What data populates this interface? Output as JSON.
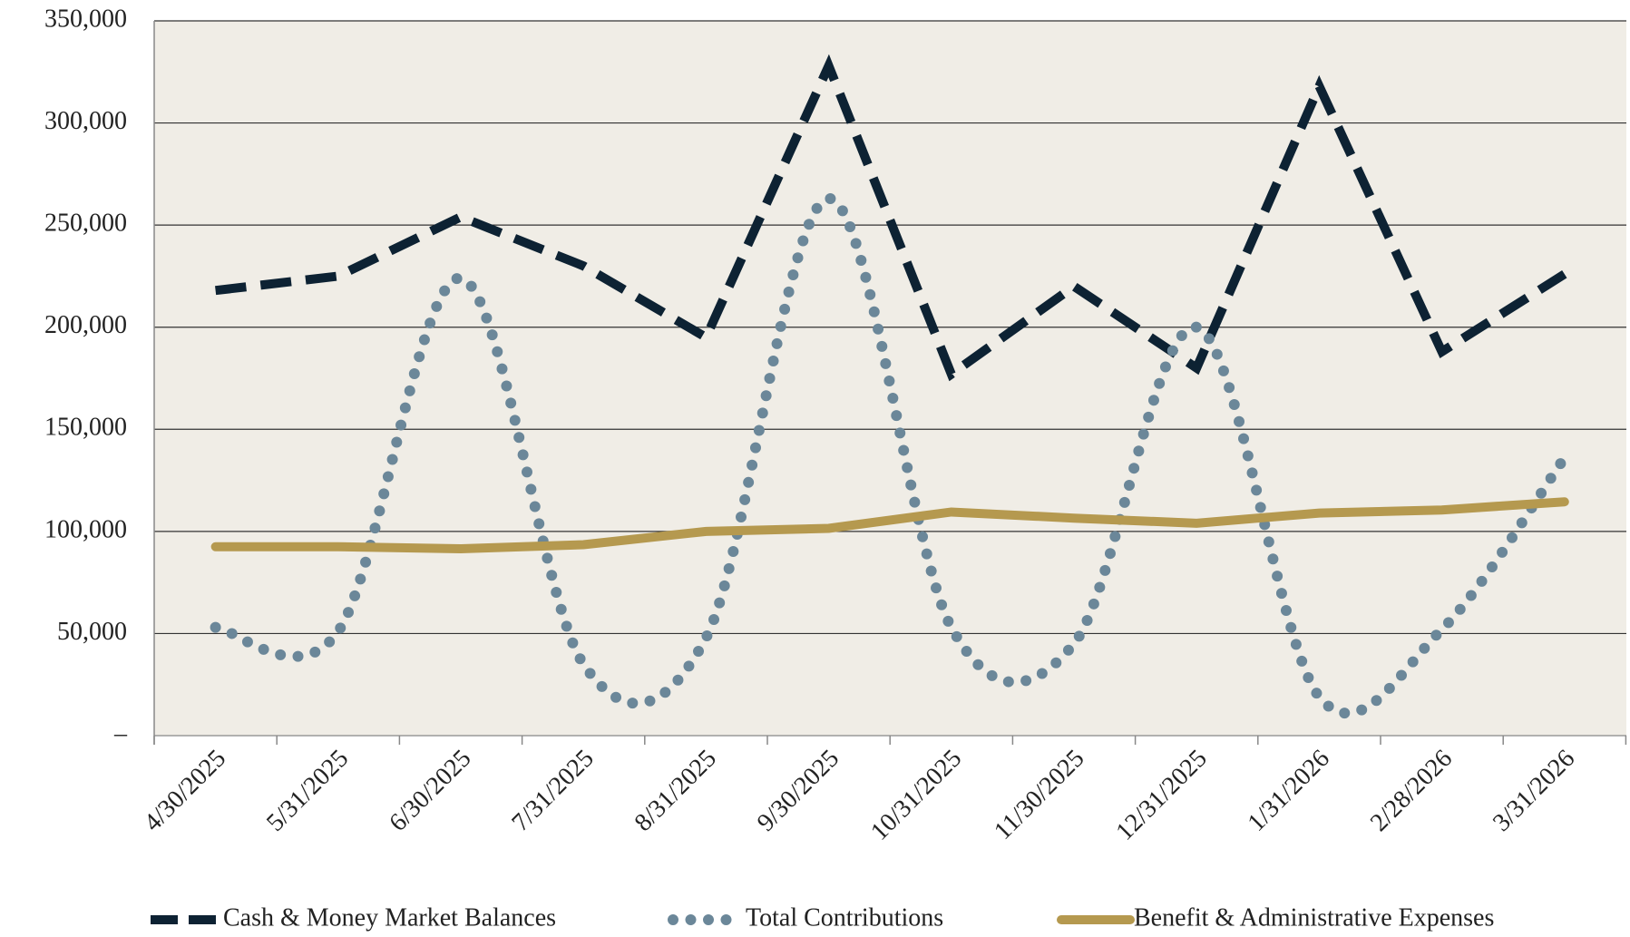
{
  "chart_data": {
    "type": "line",
    "categories": [
      "4/30/2025",
      "5/31/2025",
      "6/30/2025",
      "7/31/2025",
      "8/31/2025",
      "9/30/2025",
      "10/31/2025",
      "11/30/2025",
      "12/31/2025",
      "1/31/2026",
      "2/28/2026",
      "3/31/2026"
    ],
    "series": [
      {
        "name": "Cash & Money Market Balances",
        "color": "#0d2233",
        "style": "dashed",
        "values": [
          218000,
          225000,
          254000,
          230000,
          195000,
          328000,
          177000,
          220000,
          180000,
          318000,
          188000,
          226000
        ]
      },
      {
        "name": "Total Contributions",
        "color": "#6b8799",
        "style": "dotted",
        "smooth": true,
        "values": [
          53000,
          51000,
          224000,
          35000,
          48000,
          263000,
          53000,
          45000,
          200000,
          19000,
          52000,
          136000
        ]
      },
      {
        "name": "Benefit & Administrative Expenses",
        "color": "#b5994f",
        "style": "solid",
        "values": [
          92500,
          92500,
          91500,
          93500,
          100000,
          101500,
          109500,
          106500,
          104000,
          109000,
          110500,
          114500
        ]
      }
    ],
    "ylim": [
      0,
      350000
    ],
    "yticks": [
      {
        "value": 0,
        "label": "–"
      },
      {
        "value": 50000,
        "label": "50,000"
      },
      {
        "value": 100000,
        "label": "100,000"
      },
      {
        "value": 150000,
        "label": "150,000"
      },
      {
        "value": 200000,
        "label": "200,000"
      },
      {
        "value": 250000,
        "label": "250,000"
      },
      {
        "value": 300000,
        "label": "300,000"
      },
      {
        "value": 350000,
        "label": "350,000"
      }
    ],
    "grid": true,
    "legend": "bottom",
    "background": "#f0ede6"
  }
}
